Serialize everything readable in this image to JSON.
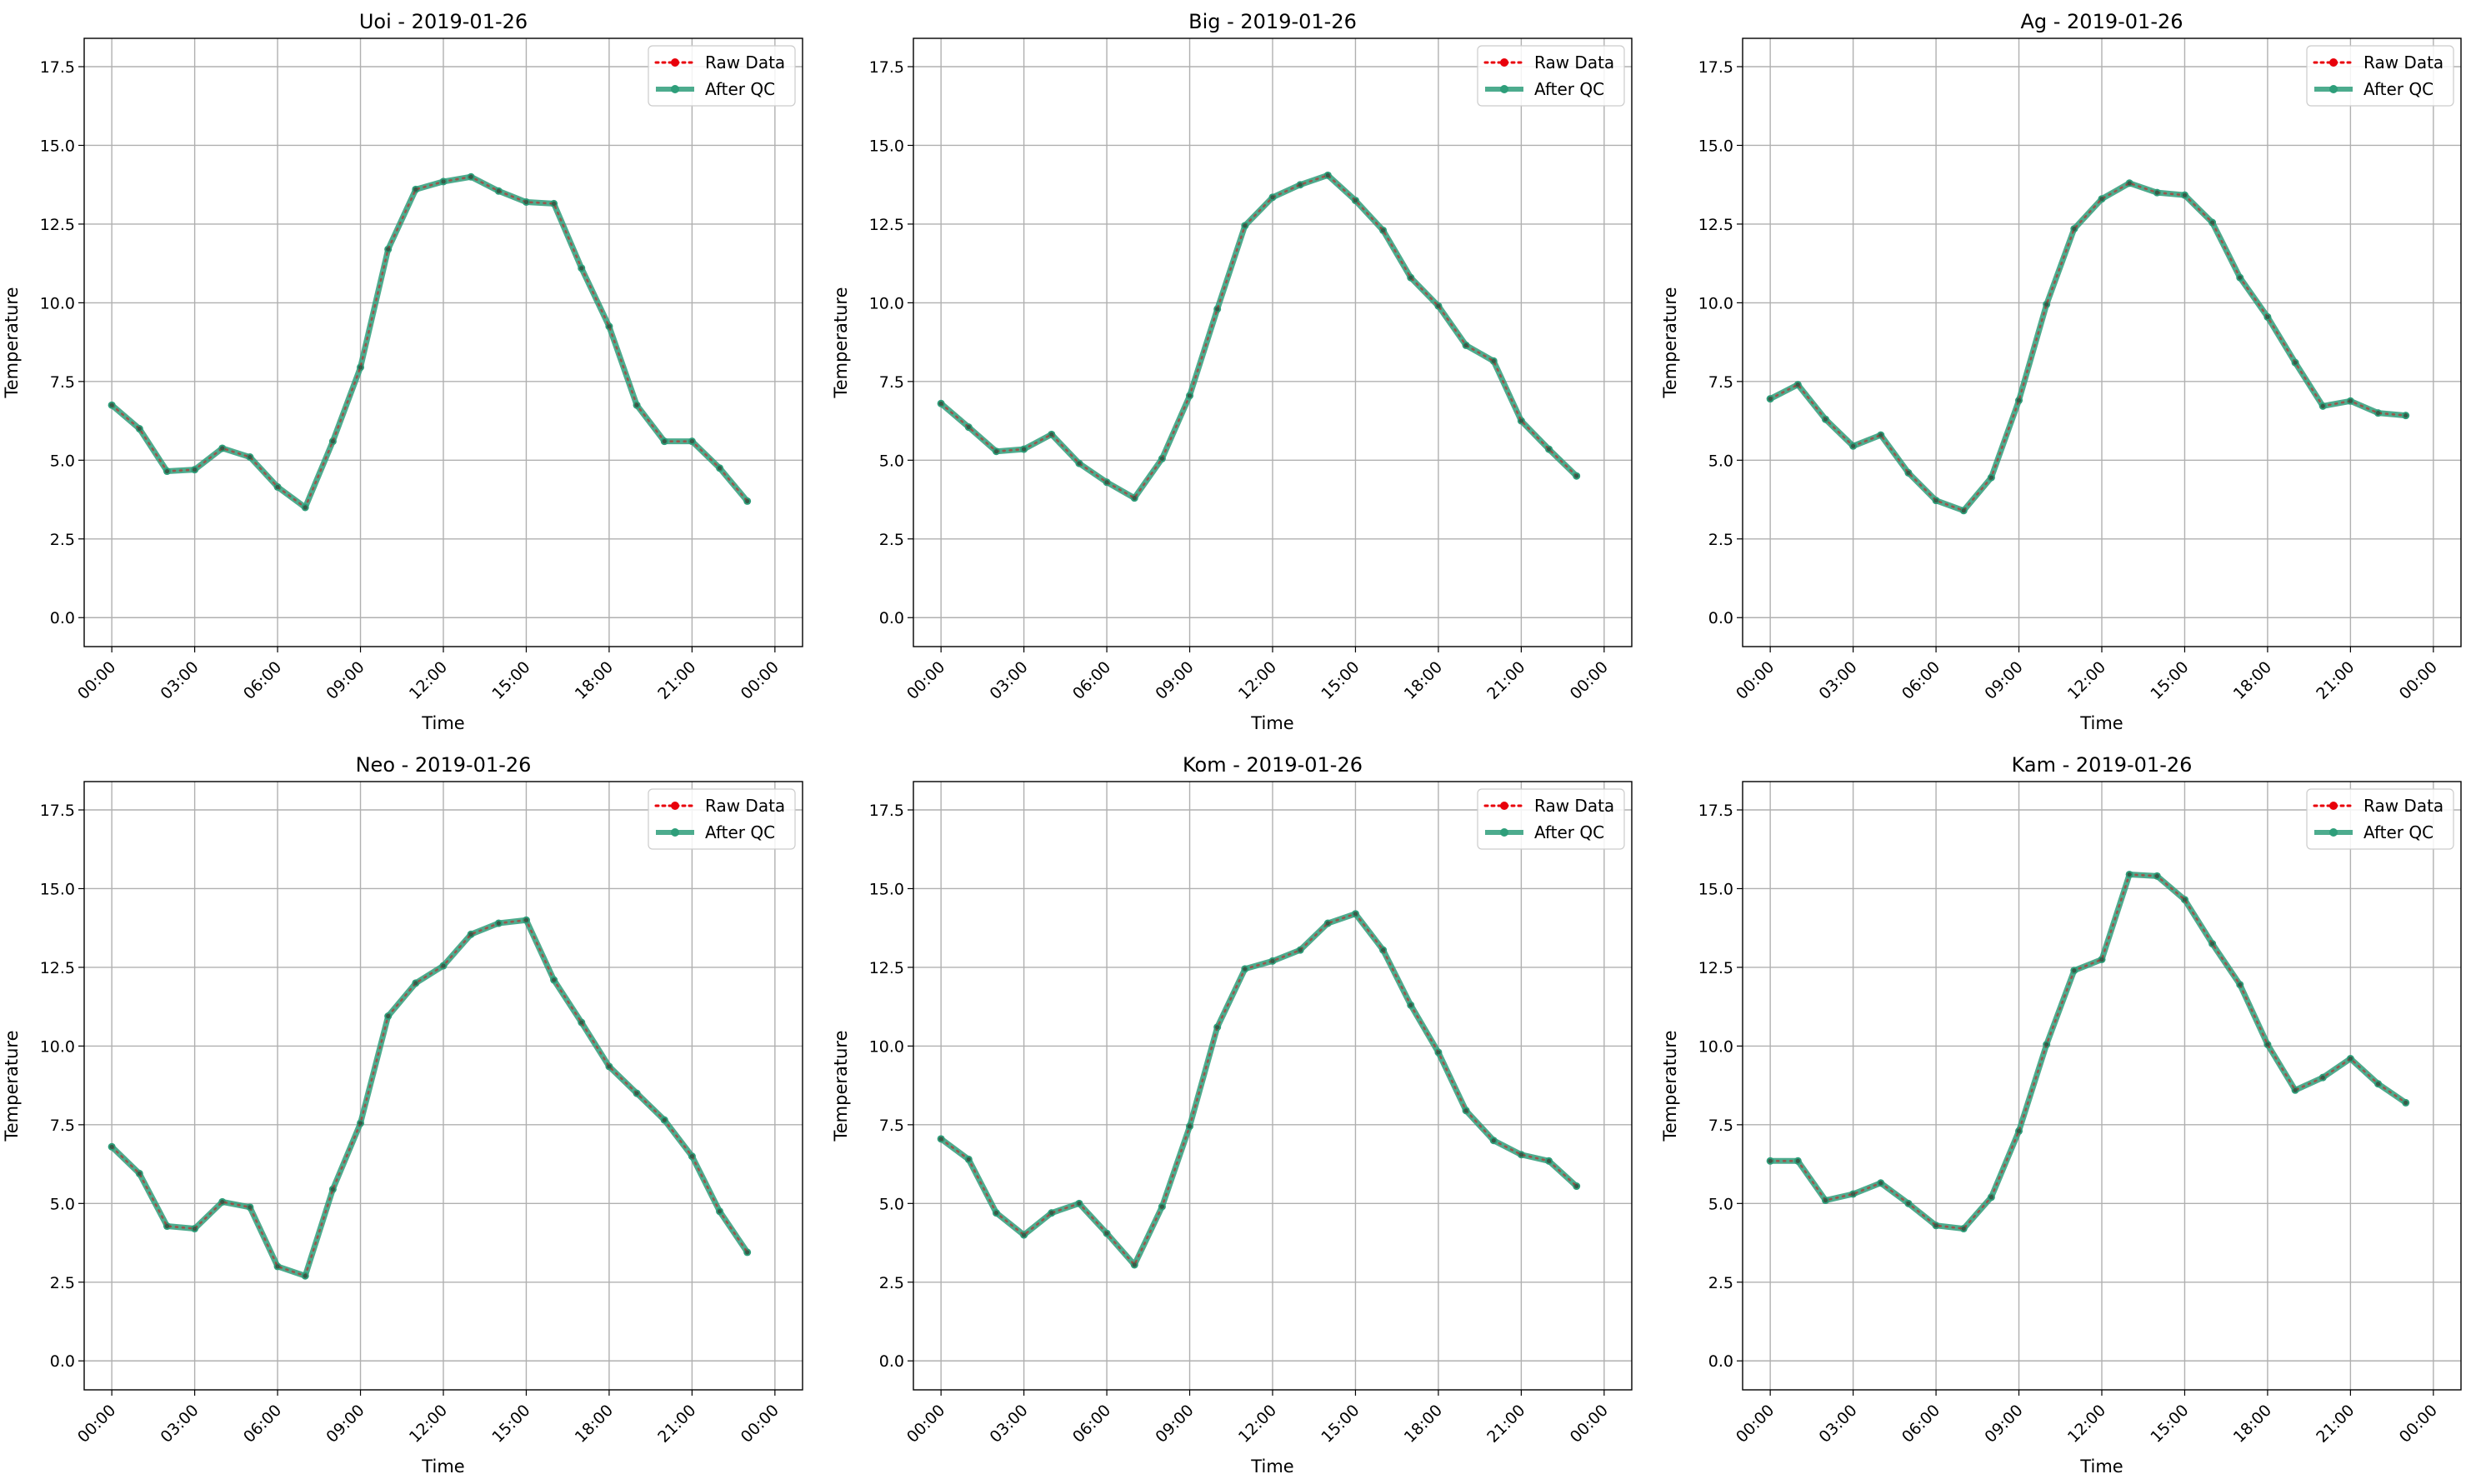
{
  "colors": {
    "raw": "#e8000b",
    "qc": "#2e9e7a",
    "grid": "#b0b0b0",
    "axes": "#000000"
  },
  "chart_data": [
    {
      "type": "line",
      "title": "Uoi - 2019-01-26",
      "xlabel": "Time",
      "ylabel": "Temperature",
      "x_ticks": [
        "00:00",
        "03:00",
        "06:00",
        "09:00",
        "12:00",
        "15:00",
        "18:00",
        "21:00",
        "00:00"
      ],
      "y_ticks": [
        "0.0",
        "2.5",
        "5.0",
        "7.5",
        "10.0",
        "12.5",
        "15.0",
        "17.5"
      ],
      "xlim": [
        "2019-01-26 00:00",
        "2019-01-27 00:00"
      ],
      "ylim": [
        0,
        18.4
      ],
      "grid": true,
      "legend": "top-right",
      "x": [
        "00:00",
        "01:00",
        "02:00",
        "03:00",
        "04:00",
        "05:00",
        "06:00",
        "07:00",
        "08:00",
        "09:00",
        "10:00",
        "11:00",
        "12:00",
        "13:00",
        "14:00",
        "15:00",
        "16:00",
        "17:00",
        "18:00",
        "19:00",
        "20:00",
        "21:00",
        "22:00",
        "23:00"
      ],
      "series": [
        {
          "name": "Raw Data",
          "values": [
            6.75,
            6.0,
            4.65,
            4.7,
            5.38,
            5.1,
            4.15,
            3.5,
            5.6,
            7.95,
            11.7,
            13.6,
            13.85,
            14.0,
            13.55,
            13.2,
            13.15,
            11.1,
            9.25,
            6.75,
            5.6,
            5.6,
            4.75,
            3.7
          ]
        },
        {
          "name": "After QC",
          "values": [
            6.75,
            6.0,
            4.65,
            4.7,
            5.38,
            5.1,
            4.15,
            3.5,
            5.6,
            7.95,
            11.7,
            13.6,
            13.85,
            14.0,
            13.55,
            13.2,
            13.15,
            11.1,
            9.25,
            6.75,
            5.6,
            5.6,
            4.75,
            3.7
          ]
        }
      ]
    },
    {
      "type": "line",
      "title": "Big - 2019-01-26",
      "xlabel": "Time",
      "ylabel": "Temperature",
      "x_ticks": [
        "00:00",
        "03:00",
        "06:00",
        "09:00",
        "12:00",
        "15:00",
        "18:00",
        "21:00",
        "00:00"
      ],
      "y_ticks": [
        "0.0",
        "2.5",
        "5.0",
        "7.5",
        "10.0",
        "12.5",
        "15.0",
        "17.5"
      ],
      "xlim": [
        "2019-01-26 00:00",
        "2019-01-27 00:00"
      ],
      "ylim": [
        0,
        18.4
      ],
      "grid": true,
      "legend": "top-right",
      "x": [
        "00:00",
        "01:00",
        "02:00",
        "03:00",
        "04:00",
        "05:00",
        "06:00",
        "07:00",
        "08:00",
        "09:00",
        "10:00",
        "11:00",
        "12:00",
        "13:00",
        "14:00",
        "15:00",
        "16:00",
        "17:00",
        "18:00",
        "19:00",
        "20:00",
        "21:00",
        "22:00",
        "23:00"
      ],
      "series": [
        {
          "name": "Raw Data",
          "values": [
            6.8,
            6.05,
            5.28,
            5.35,
            5.82,
            4.9,
            4.3,
            3.8,
            5.05,
            7.05,
            9.8,
            12.45,
            13.35,
            13.75,
            14.05,
            13.25,
            12.3,
            10.8,
            9.9,
            8.65,
            8.15,
            6.25,
            5.35,
            4.5
          ]
        },
        {
          "name": "After QC",
          "values": [
            6.8,
            6.05,
            5.28,
            5.35,
            5.82,
            4.9,
            4.3,
            3.8,
            5.05,
            7.05,
            9.8,
            12.45,
            13.35,
            13.75,
            14.05,
            13.25,
            12.3,
            10.8,
            9.9,
            8.65,
            8.15,
            6.25,
            5.35,
            4.5
          ]
        }
      ]
    },
    {
      "type": "line",
      "title": "Ag - 2019-01-26",
      "xlabel": "Time",
      "ylabel": "Temperature",
      "x_ticks": [
        "00:00",
        "03:00",
        "06:00",
        "09:00",
        "12:00",
        "15:00",
        "18:00",
        "21:00",
        "00:00"
      ],
      "y_ticks": [
        "0.0",
        "2.5",
        "5.0",
        "7.5",
        "10.0",
        "12.5",
        "15.0",
        "17.5"
      ],
      "xlim": [
        "2019-01-26 00:00",
        "2019-01-27 00:00"
      ],
      "ylim": [
        0,
        18.4
      ],
      "grid": true,
      "legend": "top-right",
      "x": [
        "00:00",
        "01:00",
        "02:00",
        "03:00",
        "04:00",
        "05:00",
        "06:00",
        "07:00",
        "08:00",
        "09:00",
        "10:00",
        "11:00",
        "12:00",
        "13:00",
        "14:00",
        "15:00",
        "16:00",
        "17:00",
        "18:00",
        "19:00",
        "20:00",
        "21:00",
        "22:00",
        "23:00"
      ],
      "series": [
        {
          "name": "Raw Data",
          "values": [
            6.95,
            7.4,
            6.3,
            5.45,
            5.8,
            4.6,
            3.72,
            3.4,
            4.45,
            6.9,
            9.95,
            12.35,
            13.3,
            13.8,
            13.5,
            13.42,
            12.55,
            10.8,
            9.55,
            8.1,
            6.72,
            6.88,
            6.5,
            6.42
          ]
        },
        {
          "name": "After QC",
          "values": [
            6.95,
            7.4,
            6.3,
            5.45,
            5.8,
            4.6,
            3.72,
            3.4,
            4.45,
            6.9,
            9.95,
            12.35,
            13.3,
            13.8,
            13.5,
            13.42,
            12.55,
            10.8,
            9.55,
            8.1,
            6.72,
            6.88,
            6.5,
            6.42
          ]
        }
      ]
    },
    {
      "type": "line",
      "title": "Neo - 2019-01-26",
      "xlabel": "Time",
      "ylabel": "Temperature",
      "x_ticks": [
        "00:00",
        "03:00",
        "06:00",
        "09:00",
        "12:00",
        "15:00",
        "18:00",
        "21:00",
        "00:00"
      ],
      "y_ticks": [
        "0.0",
        "2.5",
        "5.0",
        "7.5",
        "10.0",
        "12.5",
        "15.0",
        "17.5"
      ],
      "xlim": [
        "2019-01-26 00:00",
        "2019-01-27 00:00"
      ],
      "ylim": [
        0,
        18.4
      ],
      "grid": true,
      "legend": "top-right",
      "x": [
        "00:00",
        "01:00",
        "02:00",
        "03:00",
        "04:00",
        "05:00",
        "06:00",
        "07:00",
        "08:00",
        "09:00",
        "10:00",
        "11:00",
        "12:00",
        "13:00",
        "14:00",
        "15:00",
        "16:00",
        "17:00",
        "18:00",
        "19:00",
        "20:00",
        "21:00",
        "22:00",
        "23:00"
      ],
      "series": [
        {
          "name": "Raw Data",
          "values": [
            6.8,
            5.95,
            4.28,
            4.2,
            5.05,
            4.88,
            3.0,
            2.7,
            5.45,
            7.55,
            10.95,
            12.0,
            12.55,
            13.55,
            13.9,
            14.0,
            12.1,
            10.75,
            9.35,
            8.5,
            7.65,
            6.5,
            4.75,
            3.45
          ]
        },
        {
          "name": "After QC",
          "values": [
            6.8,
            5.95,
            4.28,
            4.2,
            5.05,
            4.88,
            3.0,
            2.7,
            5.45,
            7.55,
            10.95,
            12.0,
            12.55,
            13.55,
            13.9,
            14.0,
            12.1,
            10.75,
            9.35,
            8.5,
            7.65,
            6.5,
            4.75,
            3.45
          ]
        }
      ]
    },
    {
      "type": "line",
      "title": "Kom - 2019-01-26",
      "xlabel": "Time",
      "ylabel": "Temperature",
      "x_ticks": [
        "00:00",
        "03:00",
        "06:00",
        "09:00",
        "12:00",
        "15:00",
        "18:00",
        "21:00",
        "00:00"
      ],
      "y_ticks": [
        "0.0",
        "2.5",
        "5.0",
        "7.5",
        "10.0",
        "12.5",
        "15.0",
        "17.5"
      ],
      "xlim": [
        "2019-01-26 00:00",
        "2019-01-27 00:00"
      ],
      "ylim": [
        0,
        18.4
      ],
      "grid": true,
      "legend": "top-right",
      "x": [
        "00:00",
        "01:00",
        "02:00",
        "03:00",
        "04:00",
        "05:00",
        "06:00",
        "07:00",
        "08:00",
        "09:00",
        "10:00",
        "11:00",
        "12:00",
        "13:00",
        "14:00",
        "15:00",
        "16:00",
        "17:00",
        "18:00",
        "19:00",
        "20:00",
        "21:00",
        "22:00",
        "23:00"
      ],
      "series": [
        {
          "name": "Raw Data",
          "values": [
            7.05,
            6.4,
            4.7,
            4.0,
            4.7,
            5.0,
            4.05,
            3.05,
            4.9,
            7.45,
            10.6,
            12.45,
            12.7,
            13.05,
            13.9,
            14.2,
            13.05,
            11.3,
            9.8,
            7.95,
            7.0,
            6.55,
            6.35,
            5.55
          ]
        },
        {
          "name": "After QC",
          "values": [
            7.05,
            6.4,
            4.7,
            4.0,
            4.7,
            5.0,
            4.05,
            3.05,
            4.9,
            7.45,
            10.6,
            12.45,
            12.7,
            13.05,
            13.9,
            14.2,
            13.05,
            11.3,
            9.8,
            7.95,
            7.0,
            6.55,
            6.35,
            5.55
          ]
        }
      ]
    },
    {
      "type": "line",
      "title": "Kam - 2019-01-26",
      "xlabel": "Time",
      "ylabel": "Temperature",
      "x_ticks": [
        "00:00",
        "03:00",
        "06:00",
        "09:00",
        "12:00",
        "15:00",
        "18:00",
        "21:00",
        "00:00"
      ],
      "y_ticks": [
        "0.0",
        "2.5",
        "5.0",
        "7.5",
        "10.0",
        "12.5",
        "15.0",
        "17.5"
      ],
      "xlim": [
        "2019-01-26 00:00",
        "2019-01-27 00:00"
      ],
      "ylim": [
        0,
        18.4
      ],
      "grid": true,
      "legend": "top-right",
      "x": [
        "00:00",
        "01:00",
        "02:00",
        "03:00",
        "04:00",
        "05:00",
        "06:00",
        "07:00",
        "08:00",
        "09:00",
        "10:00",
        "11:00",
        "12:00",
        "13:00",
        "14:00",
        "15:00",
        "16:00",
        "17:00",
        "18:00",
        "19:00",
        "20:00",
        "21:00",
        "22:00",
        "23:00"
      ],
      "series": [
        {
          "name": "Raw Data",
          "values": [
            6.35,
            6.35,
            5.1,
            5.3,
            5.65,
            5.0,
            4.3,
            4.2,
            5.2,
            7.3,
            10.05,
            12.4,
            12.75,
            15.45,
            15.4,
            14.65,
            13.25,
            11.95,
            10.05,
            8.6,
            9.0,
            9.6,
            8.8,
            8.2
          ]
        },
        {
          "name": "After QC",
          "values": [
            6.35,
            6.35,
            5.1,
            5.3,
            5.65,
            5.0,
            4.3,
            4.2,
            5.2,
            7.3,
            10.05,
            12.4,
            12.75,
            15.45,
            15.4,
            14.65,
            13.25,
            11.95,
            10.05,
            8.6,
            9.0,
            9.6,
            8.8,
            8.2
          ]
        }
      ]
    }
  ]
}
